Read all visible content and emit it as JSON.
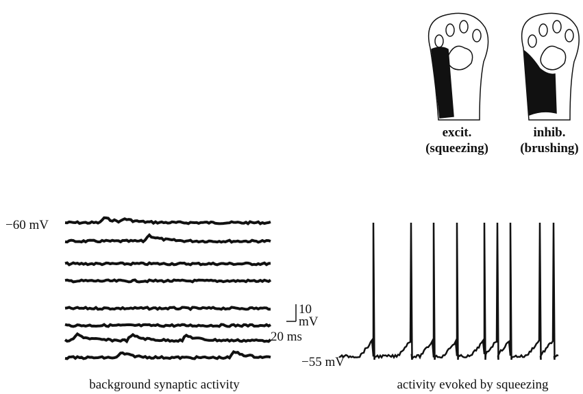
{
  "figure": {
    "receptive_fields": [
      {
        "label": "excit.",
        "stimulus": "(squeezing)"
      },
      {
        "label": "inhib.",
        "stimulus": "(brushing)"
      }
    ],
    "left_panel": {
      "potential": "−60 mV",
      "caption": "background synaptic activity"
    },
    "scale_bar": {
      "amplitude": "10",
      "amplitude_unit": "mV",
      "time": "20 ms"
    },
    "right_panel": {
      "potential": "−55 mV",
      "caption": "activity evoked by squeezing"
    }
  }
}
